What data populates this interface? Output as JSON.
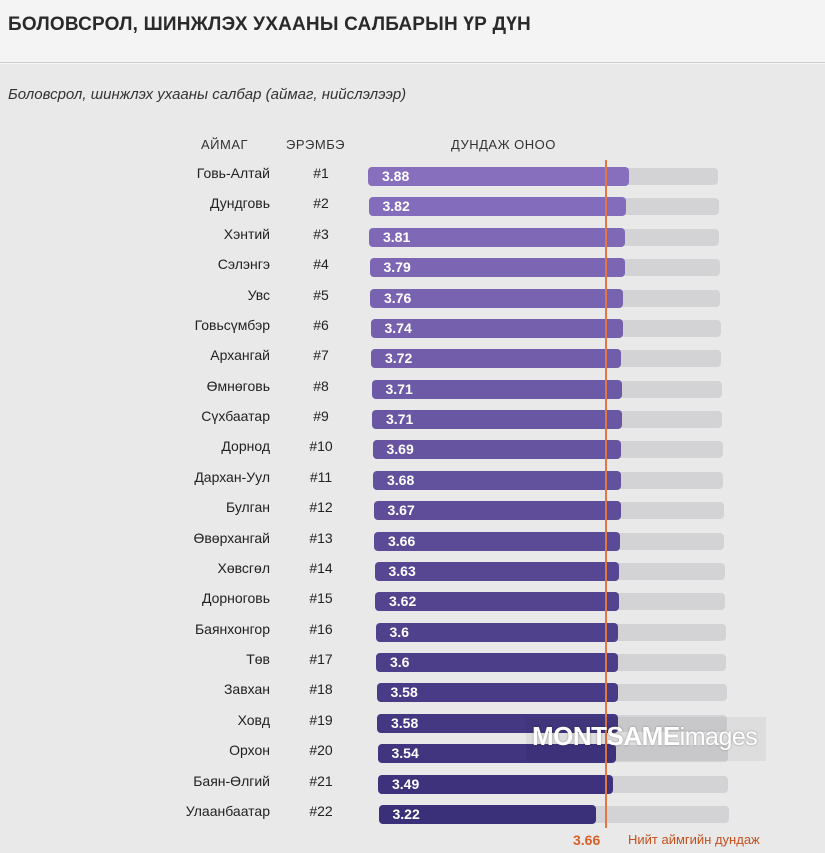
{
  "title": "БОЛОВСРОЛ, ШИНЖЛЭХ УХААНЫ САЛБАРЫН ҮР ДҮН",
  "subtitle": "Боловсрол, шинжлэх ухааны салбар (аймаг, нийслэлээр)",
  "headers": {
    "aimag": "АЙМАГ",
    "rank": "ЭРЭМБЭ",
    "score": "ДУНДАЖ ОНОО"
  },
  "average": {
    "value": "3.66",
    "label": "Нийт аймгийн дундаж"
  },
  "watermark": {
    "brand": "MONTSAME",
    "suffix": "images"
  },
  "colors": {
    "bar_light": "#9a7fcf",
    "bar_dark": "#3a2f79",
    "track": "#d3d3d6",
    "average_line": "#e5763f"
  },
  "chart_data": {
    "type": "bar",
    "orientation": "horizontal",
    "title": "Боловсрол, шинжлэх ухааны салбар (аймаг, нийслэлээр)",
    "categories": [
      "Говь-Алтай",
      "Дундговь",
      "Хэнтий",
      "Сэлэнгэ",
      "Увс",
      "Говьсүмбэр",
      "Архангай",
      "Өмнөговь",
      "Сүхбаатар",
      "Дорнод",
      "Дархан-Уул",
      "Булган",
      "Өвөрхангай",
      "Хөвсгөл",
      "Дорноговь",
      "Баянхонгор",
      "Төв",
      "Завхан",
      "Ховд",
      "Орхон",
      "Баян-Өлгий",
      "Улаанбаатар"
    ],
    "ranks": [
      "#1",
      "#2",
      "#3",
      "#4",
      "#5",
      "#6",
      "#7",
      "#8",
      "#9",
      "#10",
      "#11",
      "#12",
      "#13",
      "#14",
      "#15",
      "#16",
      "#17",
      "#18",
      "#19",
      "#20",
      "#21",
      "#22"
    ],
    "values": [
      3.88,
      3.82,
      3.81,
      3.79,
      3.76,
      3.74,
      3.72,
      3.71,
      3.71,
      3.69,
      3.68,
      3.67,
      3.66,
      3.63,
      3.62,
      3.6,
      3.6,
      3.58,
      3.58,
      3.54,
      3.49,
      3.22
    ],
    "value_labels": [
      "3.88",
      "3.82",
      "3.81",
      "3.79",
      "3.76",
      "3.74",
      "3.72",
      "3.71",
      "3.71",
      "3.69",
      "3.68",
      "3.67",
      "3.66",
      "3.63",
      "3.62",
      "3.6",
      "3.6",
      "3.58",
      "3.58",
      "3.54",
      "3.49",
      "3.22"
    ],
    "average": 3.66,
    "legend": "none",
    "grid": false
  }
}
